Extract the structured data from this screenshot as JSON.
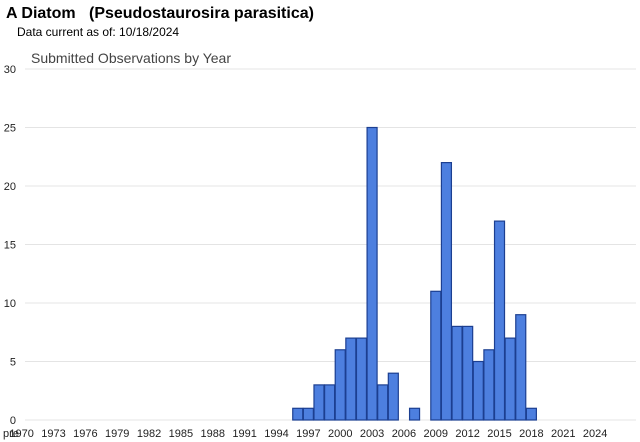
{
  "header": {
    "common_name": "A Diatom",
    "scientific_name": "(Pseudostaurosira parasitica)",
    "data_current": "Data current as of: 10/18/2024"
  },
  "chart_data": {
    "type": "bar",
    "title": "Submitted Observations by Year",
    "xlabel": "",
    "ylabel": "",
    "ylim": [
      0,
      30
    ],
    "yticks": [
      0,
      5,
      10,
      15,
      20,
      25,
      30
    ],
    "grid": true,
    "categories": [
      "pre",
      "1970",
      "1971",
      "1972",
      "1973",
      "1974",
      "1975",
      "1976",
      "1977",
      "1978",
      "1979",
      "1980",
      "1981",
      "1982",
      "1983",
      "1984",
      "1985",
      "1986",
      "1987",
      "1988",
      "1989",
      "1990",
      "1991",
      "1992",
      "1993",
      "1994",
      "1995",
      "1996",
      "1997",
      "1998",
      "1999",
      "2000",
      "2001",
      "2002",
      "2003",
      "2004",
      "2005",
      "2006",
      "2007",
      "2008",
      "2009",
      "2010",
      "2011",
      "2012",
      "2013",
      "2014",
      "2015",
      "2016",
      "2017",
      "2018",
      "2019",
      "2020",
      "2021",
      "2022",
      "2023",
      "2024"
    ],
    "x_tick_labels": [
      "pre",
      "1970",
      "1973",
      "1976",
      "1979",
      "1982",
      "1985",
      "1988",
      "1991",
      "1994",
      "1997",
      "2000",
      "2003",
      "2006",
      "2009",
      "2012",
      "2015",
      "2018",
      "2021",
      "2024"
    ],
    "values": [
      0,
      0,
      0,
      0,
      0,
      0,
      0,
      0,
      0,
      0,
      0,
      0,
      0,
      0,
      0,
      0,
      0,
      0,
      0,
      0,
      0,
      0,
      0,
      0,
      0,
      0,
      0,
      1,
      1,
      3,
      3,
      6,
      7,
      7,
      25,
      3,
      4,
      0,
      1,
      0,
      11,
      22,
      8,
      8,
      5,
      6,
      17,
      7,
      9,
      1,
      0,
      0,
      0,
      0,
      0,
      0
    ],
    "bar_color": "#4d7fdf",
    "bar_edge_color": "#1c3f91"
  }
}
